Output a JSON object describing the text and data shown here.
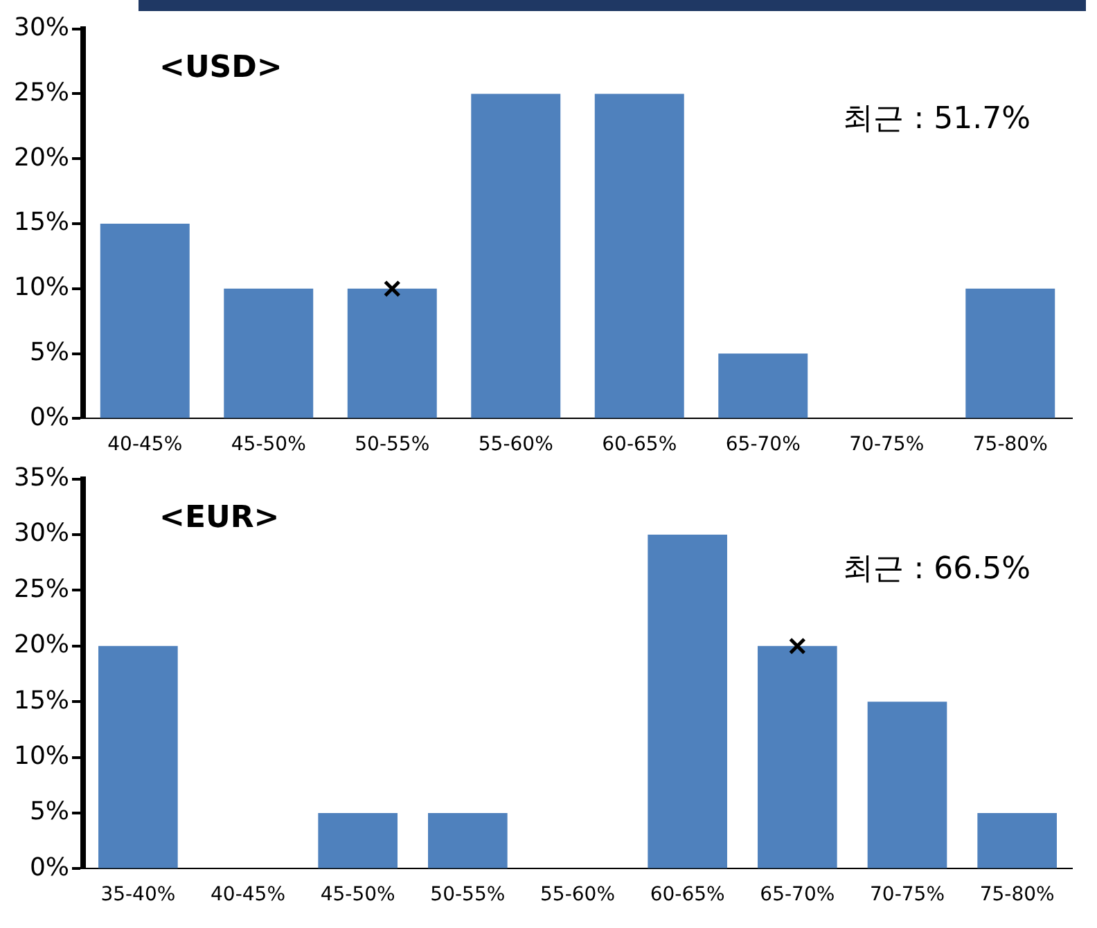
{
  "chart_data": [
    {
      "type": "bar",
      "title": "<USD>",
      "categories": [
        "40-45%",
        "45-50%",
        "50-55%",
        "55-60%",
        "60-65%",
        "65-70%",
        "70-75%",
        "75-80%"
      ],
      "series": [
        {
          "color": "#4f81bd",
          "values": [
            15,
            10,
            10,
            25,
            25,
            5,
            0,
            10
          ]
        },
        {
          "type": "scatter",
          "x": [
            "50-55%"
          ],
          "values": [
            10
          ],
          "color": "#000000",
          "marker": "cross"
        }
      ],
      "ylim": [
        0,
        30
      ],
      "yticks": [
        {
          "value": 0,
          "label": "0%"
        },
        {
          "value": 5,
          "label": "5%"
        },
        {
          "value": 10,
          "label": "10%"
        },
        {
          "value": 15,
          "label": "15%"
        },
        {
          "value": 20,
          "label": "20%"
        },
        {
          "value": 25,
          "label": "25%"
        },
        {
          "value": 30,
          "label": "30%"
        }
      ],
      "annotations": [
        "최근 : 51.7%"
      ],
      "legend": false
    },
    {
      "type": "bar",
      "title": "<EUR>",
      "categories": [
        "35-40%",
        "40-45%",
        "45-50%",
        "50-55%",
        "55-60%",
        "60-65%",
        "65-70%",
        "70-75%",
        "75-80%"
      ],
      "series": [
        {
          "color": "#4f81bd",
          "values": [
            20,
            0,
            5,
            5,
            0,
            30,
            20,
            15,
            5
          ]
        },
        {
          "type": "scatter",
          "x": [
            "65-70%"
          ],
          "values": [
            20
          ],
          "color": "#000000",
          "marker": "cross"
        }
      ],
      "ylim": [
        0,
        35
      ],
      "yticks": [
        {
          "value": 0,
          "label": "0%"
        },
        {
          "value": 5,
          "label": "5%"
        },
        {
          "value": 10,
          "label": "10%"
        },
        {
          "value": 15,
          "label": "15%"
        },
        {
          "value": 20,
          "label": "20%"
        },
        {
          "value": 25,
          "label": "25%"
        },
        {
          "value": 30,
          "label": "30%"
        },
        {
          "value": 35,
          "label": "35%"
        }
      ],
      "annotations": [
        "최근 : 66.5%"
      ],
      "legend": false
    }
  ]
}
